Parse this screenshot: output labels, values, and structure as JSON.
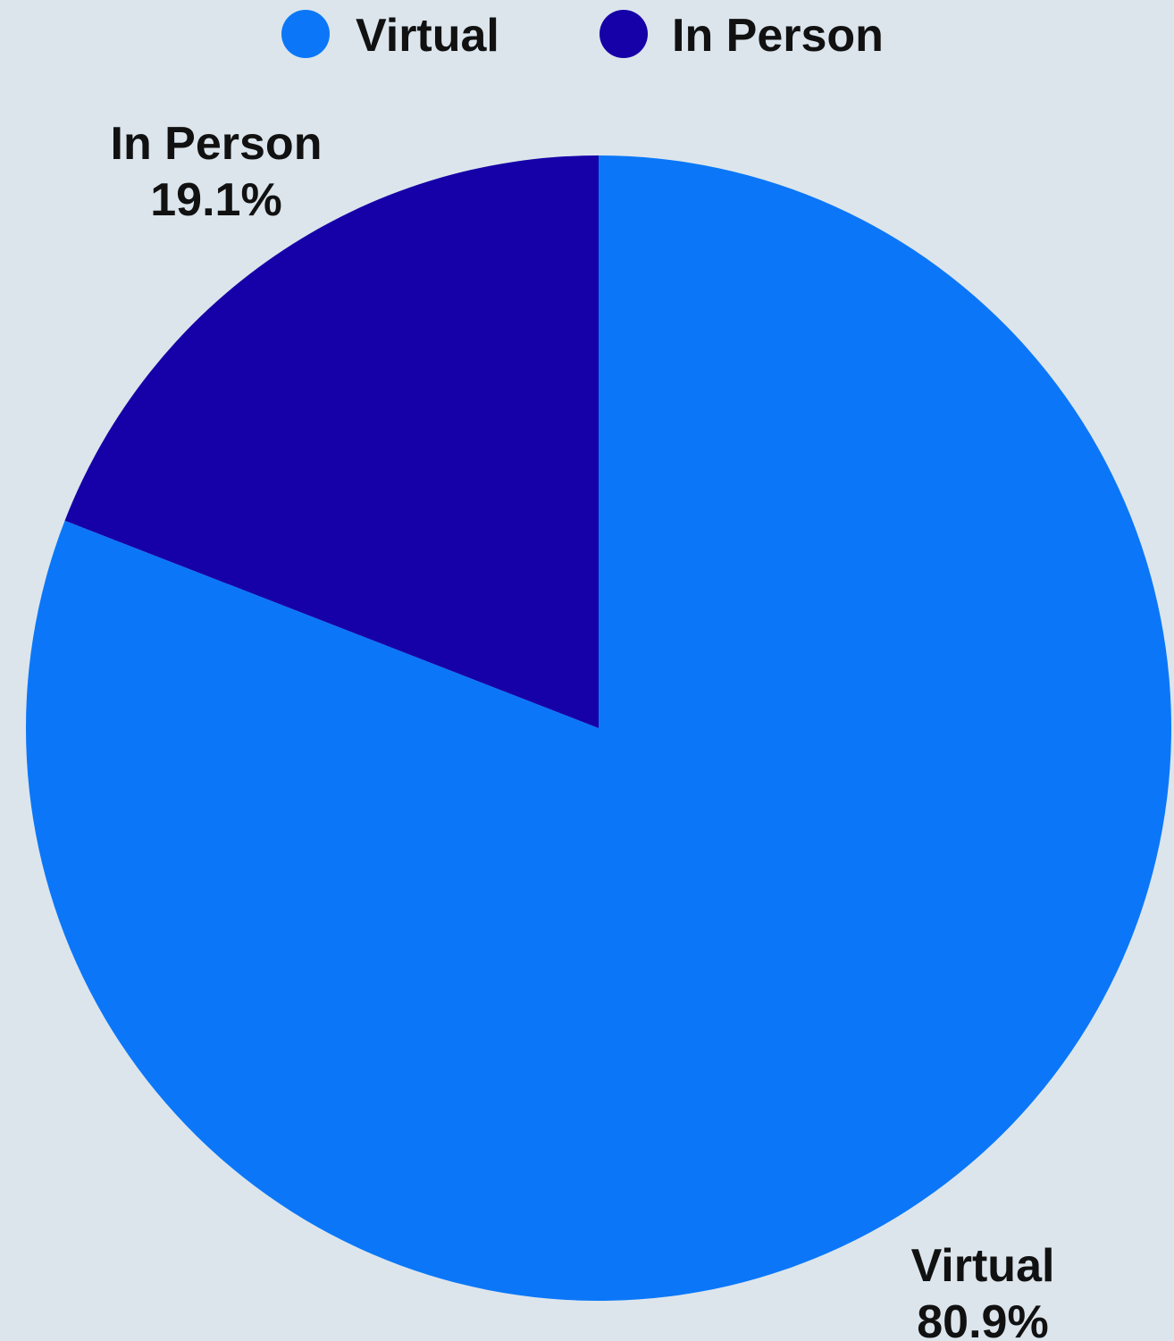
{
  "chart_data": {
    "type": "pie",
    "title": "",
    "legend_position": "top",
    "start_angle": "12 o'clock",
    "direction": "clockwise",
    "series": [
      {
        "name": "Virtual",
        "value": 80.9,
        "label": "80.9%",
        "color": "#0b77f8"
      },
      {
        "name": "In Person",
        "value": 19.1,
        "label": "19.1%",
        "color": "#1600a8"
      }
    ]
  },
  "background_color": "#dce5ec"
}
